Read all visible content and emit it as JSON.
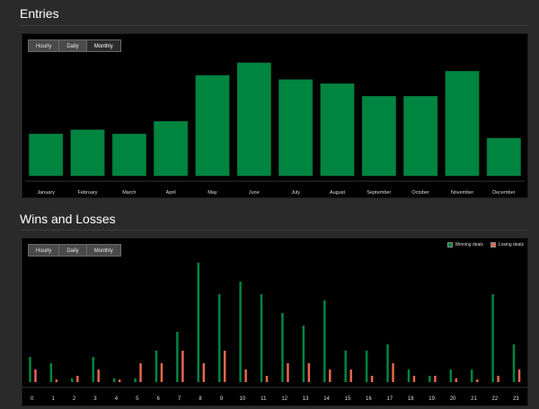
{
  "entries_section": {
    "title": "Entries",
    "tabs": [
      {
        "label": "Hourly",
        "active": false
      },
      {
        "label": "Daily",
        "active": false
      },
      {
        "label": "Monthly",
        "active": true
      }
    ]
  },
  "wins_section": {
    "title": "Wins and Losses",
    "tabs": [
      {
        "label": "Hourly",
        "active": false
      },
      {
        "label": "Daily",
        "active": false
      },
      {
        "label": "Monthly",
        "active": false
      }
    ],
    "legend": {
      "winning_label": "Winning deals",
      "losing_label": "Losing deals"
    }
  },
  "colors": {
    "green": "#008540",
    "red": "#e5684a",
    "panel_bg": "#000000",
    "page_bg": "#2a2a2a"
  },
  "chart_data": [
    {
      "type": "bar",
      "categories": [
        "January",
        "February",
        "March",
        "April",
        "May",
        "June",
        "July",
        "August",
        "September",
        "October",
        "November",
        "December"
      ],
      "values": [
        50,
        55,
        50,
        65,
        120,
        135,
        115,
        110,
        95,
        95,
        125,
        45
      ],
      "ylim": [
        0,
        150
      ],
      "title": "Entries",
      "grid": false
    },
    {
      "type": "bar",
      "categories": [
        "0",
        "1",
        "2",
        "3",
        "4",
        "5",
        "6",
        "7",
        "8",
        "9",
        "10",
        "11",
        "12",
        "13",
        "14",
        "15",
        "16",
        "17",
        "18",
        "19",
        "20",
        "21",
        "22",
        "23"
      ],
      "series": [
        {
          "name": "Winning deals",
          "values": [
            20,
            15,
            3,
            20,
            3,
            3,
            25,
            40,
            95,
            70,
            80,
            70,
            55,
            45,
            65,
            25,
            25,
            30,
            10,
            5,
            10,
            10,
            70,
            30
          ]
        },
        {
          "name": "Losing deals",
          "values": [
            10,
            2,
            5,
            10,
            2,
            15,
            15,
            25,
            15,
            25,
            10,
            5,
            15,
            15,
            10,
            10,
            5,
            15,
            5,
            5,
            3,
            2,
            5,
            10
          ]
        }
      ],
      "ylim": [
        0,
        100
      ],
      "title": "Wins and Losses",
      "legend_position": "top-right",
      "grid": false
    }
  ]
}
